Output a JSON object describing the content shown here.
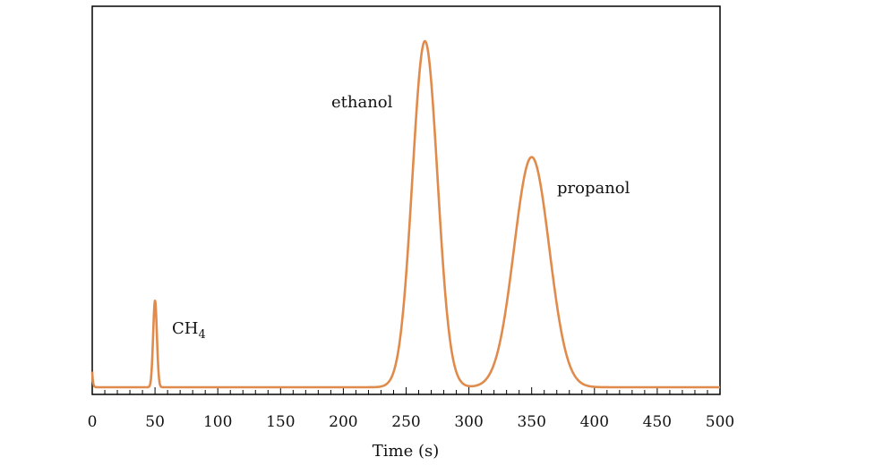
{
  "chart_data": {
    "type": "line",
    "title": "",
    "xlabel": "Time (s)",
    "ylabel": "",
    "xlim": [
      0,
      500
    ],
    "ylim": [
      0,
      1
    ],
    "x_ticks": [
      "0",
      "50",
      "100",
      "150",
      "200",
      "250",
      "300",
      "350",
      "400",
      "450",
      "500"
    ],
    "x_tick_values": [
      0,
      50,
      100,
      150,
      200,
      250,
      300,
      350,
      400,
      450,
      500
    ],
    "minor_tick_step": 10,
    "y_ticks_visible": false,
    "grid": false,
    "legend": "none",
    "line_color": "#e08b4c",
    "baseline": 0,
    "start_spike": 0.045,
    "peaks": [
      {
        "label": "CH",
        "label_sub": "4",
        "center": 50,
        "height": 0.25,
        "width": 1.5
      },
      {
        "label": "ethanol",
        "center": 265,
        "height": 1.0,
        "width": 10
      },
      {
        "label": "propanol",
        "center": 350,
        "height": 0.665,
        "width": 14
      }
    ]
  }
}
